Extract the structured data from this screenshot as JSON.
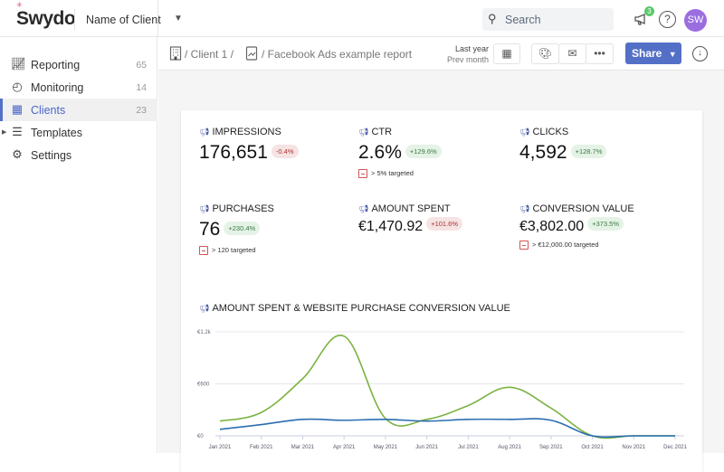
{
  "topbar": {
    "logo": "Swydo",
    "client_name": "Name of Client",
    "search_placeholder": "Search",
    "notification_count": "3",
    "help": "?",
    "avatar_initials": "SW"
  },
  "sidebar": {
    "items": [
      {
        "label": "Reporting",
        "count": "65",
        "icon": "report-chart-icon"
      },
      {
        "label": "Monitoring",
        "count": "14",
        "icon": "gauge-icon"
      },
      {
        "label": "Clients",
        "count": "23",
        "icon": "building-icon",
        "active": true
      },
      {
        "label": "Templates",
        "count": "",
        "icon": "templates-icon"
      },
      {
        "label": "Settings",
        "count": "",
        "icon": "gear-icon"
      }
    ]
  },
  "toolbar": {
    "breadcrumb": [
      "/ Client 1 /",
      "/ Facebook Ads example report"
    ],
    "period": "Last year",
    "comparison": "Prev month",
    "share_label": "Share"
  },
  "kpis": [
    {
      "title": "IMPRESSIONS",
      "value": "176,651",
      "change": "-0.4%",
      "trend": "negative"
    },
    {
      "title": "CTR",
      "value": "2.6%",
      "change": "+129.6%",
      "trend": "positive",
      "target": "> 5% targeted"
    },
    {
      "title": "CLICKS",
      "value": "4,592",
      "change": "+128.7%",
      "trend": "positive"
    },
    {
      "title": "PURCHASES",
      "value": "76",
      "change": "+230.4%",
      "trend": "positive",
      "target": "> 120 targeted"
    },
    {
      "title": "AMOUNT SPENT",
      "value": "€1,470.92",
      "change": "+101.6%",
      "trend": "negative"
    },
    {
      "title": "CONVERSION VALUE",
      "value": "€3,802.00",
      "change": "+373.5%",
      "trend": "positive",
      "target": "> €12,000.00 targeted"
    }
  ],
  "chart_data": {
    "type": "line",
    "title": "AMOUNT SPENT & WEBSITE PURCHASE CONVERSION VALUE",
    "categories": [
      "Jan 2021",
      "Feb 2021",
      "Mar 2021",
      "Apr 2021",
      "May 2021",
      "Jun 2021",
      "Jul 2021",
      "Aug 2021",
      "Sep 2021",
      "Oct 2021",
      "Nov 2021",
      "Dec 2021"
    ],
    "yticks": [
      "€0",
      "€600",
      "€1.2k"
    ],
    "ylim": [
      0,
      1200
    ],
    "grid": true,
    "series": [
      {
        "color": "#7cb342",
        "values": [
          170,
          270,
          660,
          1150,
          200,
          190,
          350,
          560,
          320,
          0,
          0,
          0
        ]
      },
      {
        "color": "#2a6db0",
        "values": [
          75,
          130,
          190,
          180,
          190,
          170,
          190,
          190,
          180,
          0,
          0,
          0
        ]
      }
    ]
  }
}
